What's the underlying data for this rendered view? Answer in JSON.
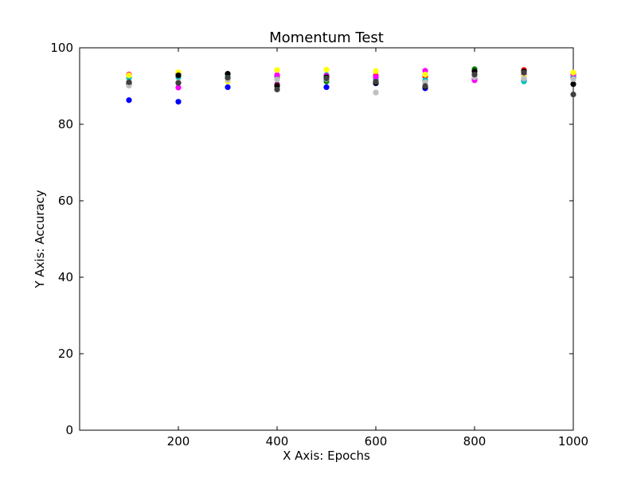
{
  "chart_data": {
    "type": "scatter",
    "title": "Momentum Test",
    "xlabel": "X Axis: Epochs",
    "ylabel": "Y Axis: Accuracy",
    "xlim": [
      0,
      1000
    ],
    "ylim": [
      0,
      100
    ],
    "xticks": [
      200,
      400,
      600,
      800,
      1000
    ],
    "yticks": [
      0,
      20,
      40,
      60,
      80,
      100
    ],
    "grid": false,
    "legend": "none",
    "series": [
      {
        "color": "#0000ff",
        "x": [
          100,
          200,
          300,
          400,
          500,
          600,
          700,
          800,
          900,
          1000
        ],
        "y": [
          86.3,
          85.9,
          89.7,
          90.4,
          89.7,
          90.7,
          89.4,
          92.0,
          91.4,
          92.3
        ]
      },
      {
        "color": "#008000",
        "x": [
          100,
          200,
          300,
          400,
          500,
          600,
          700,
          800,
          900,
          1000
        ],
        "y": [
          90.5,
          92.5,
          92.0,
          92.5,
          91.2,
          92.0,
          91.0,
          94.4,
          92.0,
          92.5
        ]
      },
      {
        "color": "#ff0000",
        "x": [
          100,
          200,
          300,
          400,
          500,
          600,
          700,
          800,
          900,
          1000
        ],
        "y": [
          93.0,
          93.2,
          92.0,
          90.2,
          92.5,
          92.7,
          92.5,
          93.0,
          94.2,
          93.0
        ]
      },
      {
        "color": "#00bfbf",
        "x": [
          100,
          200,
          300,
          400,
          500,
          600,
          700,
          800,
          900,
          1000
        ],
        "y": [
          92.2,
          92.3,
          92.5,
          92.8,
          92.9,
          91.8,
          91.5,
          93.0,
          91.2,
          92.7
        ]
      },
      {
        "color": "#ff00ff",
        "x": [
          100,
          200,
          300,
          400,
          500,
          600,
          700,
          800,
          900,
          1000
        ],
        "y": [
          92.9,
          89.6,
          92.0,
          92.9,
          92.7,
          92.4,
          94.0,
          91.5,
          93.0,
          93.1
        ]
      },
      {
        "color": "#ffff00",
        "x": [
          100,
          200,
          300,
          400,
          500,
          600,
          700,
          800,
          900,
          1000
        ],
        "y": [
          92.8,
          93.6,
          91.2,
          94.2,
          94.3,
          93.9,
          93.0,
          92.8,
          92.5,
          93.5
        ]
      },
      {
        "color": "#000000",
        "x": [
          100,
          200,
          300,
          400,
          500,
          600,
          700,
          800,
          900,
          1000
        ],
        "y": [
          90.8,
          92.8,
          93.2,
          90.0,
          92.3,
          90.8,
          89.8,
          93.8,
          93.8,
          90.5
        ]
      },
      {
        "color": "#bfbfbf",
        "x": [
          100,
          200,
          300,
          400,
          500,
          600,
          700,
          800,
          900,
          1000
        ],
        "y": [
          90.1,
          91.0,
          91.6,
          91.7,
          91.8,
          88.3,
          91.0,
          92.3,
          92.0,
          91.8
        ]
      },
      {
        "color": "#404040",
        "x": [
          100,
          200,
          300,
          400,
          500,
          600,
          700,
          800,
          900,
          1000
        ],
        "y": [
          91.0,
          90.8,
          92.2,
          89.1,
          92.0,
          91.1,
          90.0,
          93.0,
          93.5,
          87.8
        ]
      }
    ]
  }
}
